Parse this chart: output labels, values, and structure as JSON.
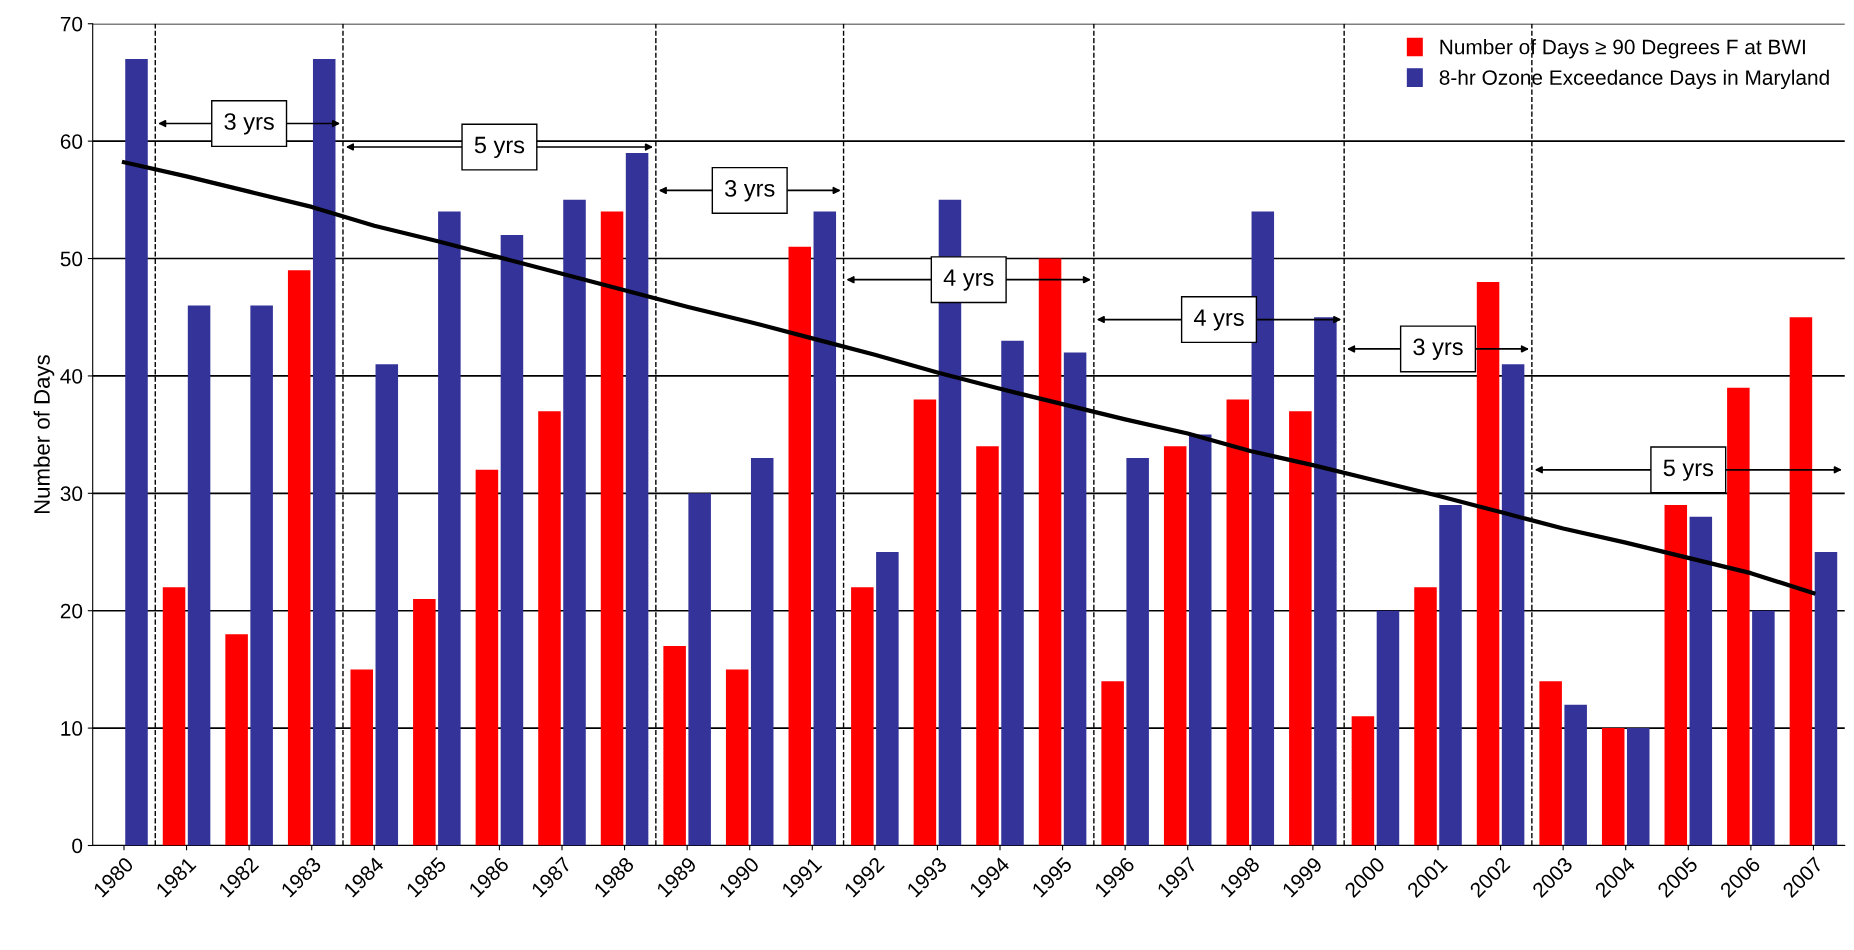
{
  "chart_data": {
    "type": "bar",
    "ylabel": "Number of Days",
    "categories": [
      "1980",
      "1981",
      "1982",
      "1983",
      "1984",
      "1985",
      "1986",
      "1987",
      "1988",
      "1989",
      "1990",
      "1991",
      "1992",
      "1993",
      "1994",
      "1995",
      "1996",
      "1997",
      "1998",
      "1999",
      "2000",
      "2001",
      "2002",
      "2003",
      "2004",
      "2005",
      "2006",
      "2007"
    ],
    "series": [
      {
        "name": "Number of Days ≥ 90 Degrees F at BWI",
        "color": "#ff0000",
        "values": [
          null,
          22,
          18,
          49,
          15,
          21,
          32,
          37,
          54,
          17,
          15,
          51,
          22,
          38,
          34,
          50,
          14,
          34,
          38,
          37,
          11,
          22,
          48,
          14,
          10,
          29,
          39,
          45
        ]
      },
      {
        "name": "8-hr Ozone Exceedance Days in Maryland",
        "color": "#333399",
        "values": [
          67,
          46,
          46,
          67,
          41,
          54,
          52,
          55,
          59,
          30,
          33,
          54,
          25,
          55,
          43,
          42,
          33,
          35,
          54,
          45,
          20,
          29,
          41,
          12,
          10,
          28,
          20,
          25
        ]
      },
      {
        "type": "line",
        "color": "#000000",
        "values": [
          58.2,
          57.0,
          55.7,
          54.4,
          52.8,
          51.5,
          50.1,
          48.7,
          47.3,
          45.9,
          44.6,
          43.2,
          41.8,
          40.3,
          38.9,
          37.6,
          36.3,
          35.1,
          33.6,
          32.4,
          31.1,
          29.8,
          28.4,
          27.0,
          25.8,
          24.5,
          23.2,
          21.5
        ]
      }
    ],
    "ylim": [
      0,
      70
    ],
    "yticks": [
      0,
      10,
      20,
      30,
      40,
      50,
      60,
      70
    ],
    "grid": "y",
    "legend": "top right",
    "annotations": [
      "3 yrs",
      "5 yrs",
      "3 yrs",
      "4 yrs",
      "4 yrs",
      "3 yrs",
      "5 yrs"
    ]
  }
}
